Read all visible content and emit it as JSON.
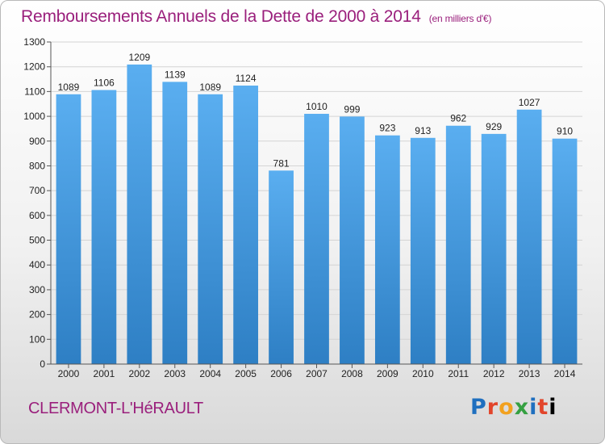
{
  "title": "Remboursements Annuels de la Dette de 2000 à 2014",
  "title_unit": "(en milliers d'€)",
  "city": "CLERMONT-L'HéRAULT",
  "logo_letters": [
    "P",
    "r",
    "o",
    "x",
    "i",
    "t",
    "i"
  ],
  "colors": {
    "title": "#9a1f7c",
    "bar_light": "#5aaef0",
    "bar_dark": "#2e7fc4"
  },
  "chart_data": {
    "type": "bar",
    "title": "Remboursements Annuels de la Dette de 2000 à 2014",
    "xlabel": "",
    "ylabel": "",
    "categories": [
      "2000",
      "2001",
      "2002",
      "2003",
      "2004",
      "2005",
      "2006",
      "2007",
      "2008",
      "2009",
      "2010",
      "2011",
      "2012",
      "2013",
      "2014"
    ],
    "values": [
      1089,
      1106,
      1209,
      1139,
      1089,
      1124,
      781,
      1010,
      999,
      923,
      913,
      962,
      929,
      1027,
      910
    ],
    "ylim": [
      0,
      1300
    ],
    "yticks": [
      0,
      100,
      200,
      300,
      400,
      500,
      600,
      700,
      800,
      900,
      1000,
      1100,
      1200,
      1300
    ],
    "grid": true
  }
}
